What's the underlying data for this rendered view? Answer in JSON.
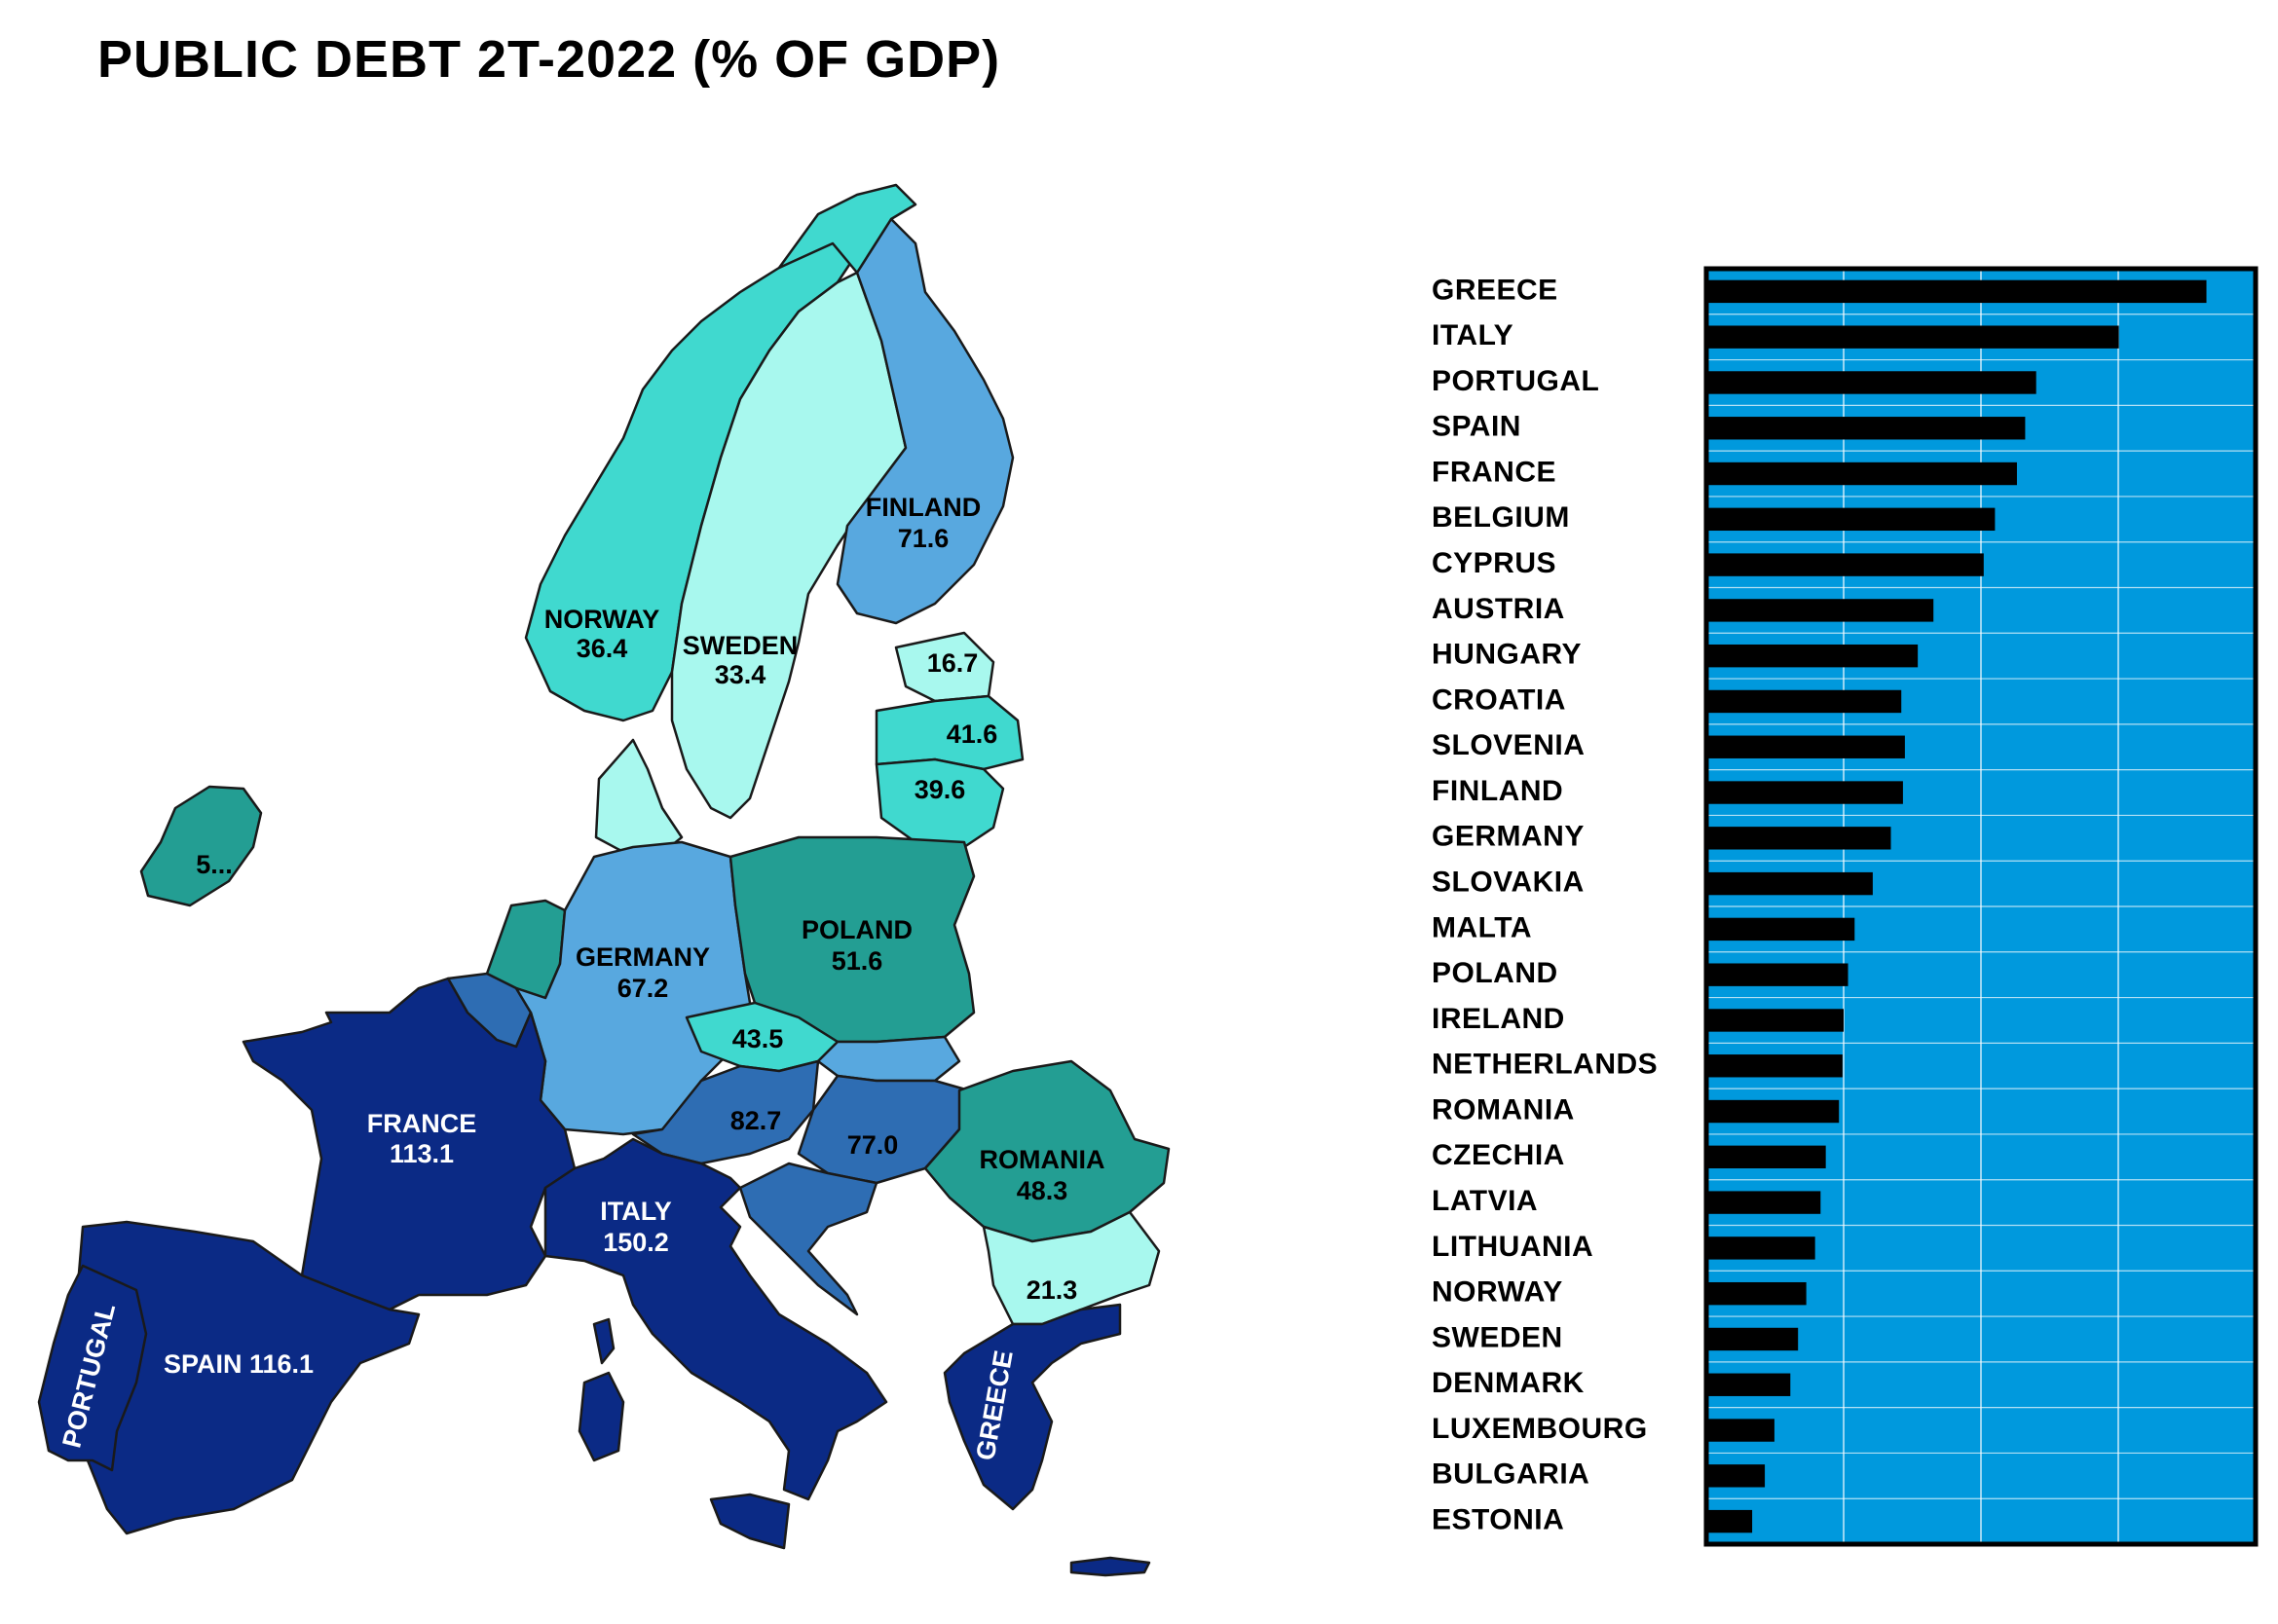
{
  "title": "PUBLIC DEBT 2T-2022 (% OF GDP)",
  "colors": {
    "very_high": "#0b2a85",
    "high": "#2e6db3",
    "mid_high": "#58a8df",
    "mid": "#239e93",
    "low": "#40d9cf",
    "very_low": "#a8f8ee",
    "chart_background": "#0099dd",
    "bar": "#000000",
    "gridline": "#ffffff"
  },
  "map": {
    "labels": {
      "norway": {
        "name": "NORWAY",
        "value": "36.4"
      },
      "sweden": {
        "name": "SWEDEN",
        "value": "33.4"
      },
      "finland": {
        "name": "FINLAND",
        "value": "71.6"
      },
      "estonia": {
        "value": "16.7"
      },
      "latvia": {
        "value": "41.6"
      },
      "lithuania": {
        "value": "39.6"
      },
      "ireland": {
        "value": "5..."
      },
      "germany": {
        "name": "GERMANY",
        "value": "67.2"
      },
      "poland": {
        "name": "POLAND",
        "value": "51.6"
      },
      "czechia": {
        "value": "43.5"
      },
      "austria": {
        "value": "82.7"
      },
      "hungary": {
        "value": "77.0"
      },
      "romania": {
        "name": "ROMANIA",
        "value": "48.3"
      },
      "bulgaria": {
        "value": "21.3"
      },
      "france": {
        "name": "FRANCE",
        "value": "113.1"
      },
      "italy": {
        "name": "ITALY",
        "value": "150.2"
      },
      "spain": {
        "name": "SPAIN 116.1"
      },
      "portugal": {
        "name": "PORTUGAL"
      },
      "greece": {
        "name": "GREECE"
      }
    }
  },
  "chart_data": {
    "type": "bar",
    "orientation": "horizontal",
    "categories": [
      "GREECE",
      "ITALY",
      "PORTUGAL",
      "SPAIN",
      "FRANCE",
      "BELGIUM",
      "CYPRUS",
      "AUSTRIA",
      "HUNGARY",
      "CROATIA",
      "SLOVENIA",
      "FINLAND",
      "GERMANY",
      "SLOVAKIA",
      "MALTA",
      "POLAND",
      "IRELAND",
      "NETHERLANDS",
      "ROMANIA",
      "CZECHIA",
      "LATVIA",
      "LITHUANIA",
      "NORWAY",
      "SWEDEN",
      "DENMARK",
      "LUXEMBOURG",
      "BULGARIA",
      "ESTONIA"
    ],
    "values": [
      182.1,
      150.2,
      120.1,
      116.1,
      113.1,
      105.1,
      101.0,
      82.7,
      77.0,
      71.0,
      72.3,
      71.6,
      67.2,
      60.6,
      54.0,
      51.6,
      50.0,
      49.6,
      48.3,
      43.5,
      41.6,
      39.6,
      36.4,
      33.4,
      30.6,
      24.8,
      21.3,
      16.7
    ],
    "xlim": [
      0,
      200
    ],
    "grid": true
  }
}
